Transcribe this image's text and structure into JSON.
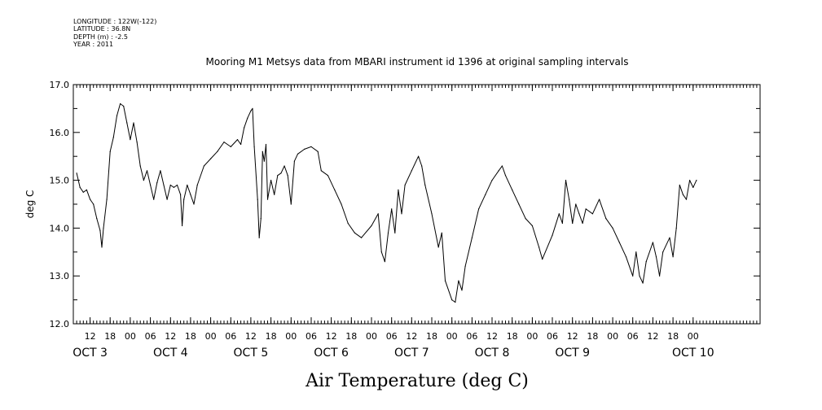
{
  "header": {
    "longitude": "LONGITUDE : 122W(-122)",
    "latitude": "LATITUDE : 36.8N",
    "depth": "DEPTH (m) : -2.5",
    "year": "YEAR : 2011"
  },
  "chart_data": {
    "type": "line",
    "title": "Mooring M1 Metsys data from MBARI instrument id 1396 at original sampling intervals",
    "xlabel": "Air Temperature (deg C)",
    "ylabel": "deg C",
    "ylim": [
      12.0,
      17.0
    ],
    "yticks": [
      "12.0",
      "13.0",
      "14.0",
      "15.0",
      "16.0",
      "17.0"
    ],
    "xlim": [
      "2011-10-02T07:00",
      "2011-10-10T20:00"
    ],
    "hour_ticks": [
      {
        "t": "2011-10-02T12:00",
        "label": "12"
      },
      {
        "t": "2011-10-02T18:00",
        "label": "18"
      },
      {
        "t": "2011-10-03T00:00",
        "label": "00"
      },
      {
        "t": "2011-10-03T06:00",
        "label": "06"
      },
      {
        "t": "2011-10-03T12:00",
        "label": "12"
      },
      {
        "t": "2011-10-03T18:00",
        "label": "18"
      },
      {
        "t": "2011-10-04T00:00",
        "label": "00"
      },
      {
        "t": "2011-10-04T06:00",
        "label": "06"
      },
      {
        "t": "2011-10-04T12:00",
        "label": "12"
      },
      {
        "t": "2011-10-04T18:00",
        "label": "18"
      },
      {
        "t": "2011-10-05T00:00",
        "label": "00"
      },
      {
        "t": "2011-10-05T06:00",
        "label": "06"
      },
      {
        "t": "2011-10-05T12:00",
        "label": "12"
      },
      {
        "t": "2011-10-05T18:00",
        "label": "18"
      },
      {
        "t": "2011-10-06T00:00",
        "label": "00"
      },
      {
        "t": "2011-10-06T06:00",
        "label": "06"
      },
      {
        "t": "2011-10-06T12:00",
        "label": "12"
      },
      {
        "t": "2011-10-06T18:00",
        "label": "18"
      },
      {
        "t": "2011-10-07T00:00",
        "label": "00"
      },
      {
        "t": "2011-10-07T06:00",
        "label": "06"
      },
      {
        "t": "2011-10-07T12:00",
        "label": "12"
      },
      {
        "t": "2011-10-07T18:00",
        "label": "18"
      },
      {
        "t": "2011-10-08T00:00",
        "label": "00"
      },
      {
        "t": "2011-10-08T06:00",
        "label": "06"
      },
      {
        "t": "2011-10-08T12:00",
        "label": "12"
      },
      {
        "t": "2011-10-08T18:00",
        "label": "18"
      },
      {
        "t": "2011-10-09T00:00",
        "label": "00"
      },
      {
        "t": "2011-10-09T06:00",
        "label": "06"
      },
      {
        "t": "2011-10-09T12:00",
        "label": "12"
      },
      {
        "t": "2011-10-09T18:00",
        "label": "18"
      },
      {
        "t": "2011-10-10T00:00",
        "label": "00"
      }
    ],
    "day_labels": [
      {
        "t": "2011-10-02T12:00",
        "label": "OCT  3"
      },
      {
        "t": "2011-10-03T12:00",
        "label": "OCT  4"
      },
      {
        "t": "2011-10-04T12:00",
        "label": "OCT  5"
      },
      {
        "t": "2011-10-05T12:00",
        "label": "OCT  6"
      },
      {
        "t": "2011-10-06T12:00",
        "label": "OCT  7"
      },
      {
        "t": "2011-10-07T12:00",
        "label": "OCT  8"
      },
      {
        "t": "2011-10-08T12:00",
        "label": "OCT  9"
      },
      {
        "t": "2011-10-10T00:00",
        "label": "OCT 10"
      }
    ],
    "series": [
      {
        "values": [
          [
            "2011-10-02T08:00",
            15.15
          ],
          [
            "2011-10-02T09:00",
            14.85
          ],
          [
            "2011-10-02T10:00",
            14.75
          ],
          [
            "2011-10-02T11:00",
            14.8
          ],
          [
            "2011-10-02T12:00",
            14.6
          ],
          [
            "2011-10-02T13:00",
            14.5
          ],
          [
            "2011-10-02T14:00",
            14.2
          ],
          [
            "2011-10-02T15:00",
            13.95
          ],
          [
            "2011-10-02T15:30",
            13.6
          ],
          [
            "2011-10-02T16:00",
            14.0
          ],
          [
            "2011-10-02T17:00",
            14.6
          ],
          [
            "2011-10-02T18:00",
            15.6
          ],
          [
            "2011-10-02T19:00",
            15.9
          ],
          [
            "2011-10-02T20:00",
            16.35
          ],
          [
            "2011-10-02T21:00",
            16.6
          ],
          [
            "2011-10-02T22:00",
            16.55
          ],
          [
            "2011-10-02T23:00",
            16.2
          ],
          [
            "2011-10-03T00:00",
            15.85
          ],
          [
            "2011-10-03T01:00",
            16.2
          ],
          [
            "2011-10-03T02:00",
            15.8
          ],
          [
            "2011-10-03T03:00",
            15.3
          ],
          [
            "2011-10-03T04:00",
            15.0
          ],
          [
            "2011-10-03T05:00",
            15.2
          ],
          [
            "2011-10-03T06:00",
            14.9
          ],
          [
            "2011-10-03T07:00",
            14.6
          ],
          [
            "2011-10-03T08:00",
            14.95
          ],
          [
            "2011-10-03T09:00",
            15.2
          ],
          [
            "2011-10-03T10:00",
            14.9
          ],
          [
            "2011-10-03T11:00",
            14.6
          ],
          [
            "2011-10-03T12:00",
            14.9
          ],
          [
            "2011-10-03T13:00",
            14.85
          ],
          [
            "2011-10-03T14:00",
            14.9
          ],
          [
            "2011-10-03T15:00",
            14.7
          ],
          [
            "2011-10-03T15:30",
            14.05
          ],
          [
            "2011-10-03T16:00",
            14.6
          ],
          [
            "2011-10-03T17:00",
            14.9
          ],
          [
            "2011-10-03T18:00",
            14.7
          ],
          [
            "2011-10-03T19:00",
            14.5
          ],
          [
            "2011-10-03T20:00",
            14.9
          ],
          [
            "2011-10-03T22:00",
            15.3
          ],
          [
            "2011-10-04T00:00",
            15.45
          ],
          [
            "2011-10-04T02:00",
            15.6
          ],
          [
            "2011-10-04T04:00",
            15.8
          ],
          [
            "2011-10-04T06:00",
            15.7
          ],
          [
            "2011-10-04T08:00",
            15.85
          ],
          [
            "2011-10-04T09:00",
            15.75
          ],
          [
            "2011-10-04T10:00",
            16.1
          ],
          [
            "2011-10-04T11:00",
            16.3
          ],
          [
            "2011-10-04T12:00",
            16.45
          ],
          [
            "2011-10-04T12:30",
            16.5
          ],
          [
            "2011-10-04T13:00",
            15.7
          ],
          [
            "2011-10-04T14:00",
            14.6
          ],
          [
            "2011-10-04T14:30",
            13.8
          ],
          [
            "2011-10-04T15:00",
            14.2
          ],
          [
            "2011-10-04T15:30",
            15.6
          ],
          [
            "2011-10-04T16:00",
            15.4
          ],
          [
            "2011-10-04T16:30",
            15.75
          ],
          [
            "2011-10-04T17:00",
            14.6
          ],
          [
            "2011-10-04T18:00",
            15.0
          ],
          [
            "2011-10-04T19:00",
            14.7
          ],
          [
            "2011-10-04T20:00",
            15.1
          ],
          [
            "2011-10-04T21:00",
            15.15
          ],
          [
            "2011-10-04T22:00",
            15.3
          ],
          [
            "2011-10-04T23:00",
            15.1
          ],
          [
            "2011-10-05T00:00",
            14.5
          ],
          [
            "2011-10-05T01:00",
            15.4
          ],
          [
            "2011-10-05T02:00",
            15.55
          ],
          [
            "2011-10-05T04:00",
            15.65
          ],
          [
            "2011-10-05T06:00",
            15.7
          ],
          [
            "2011-10-05T08:00",
            15.6
          ],
          [
            "2011-10-05T09:00",
            15.2
          ],
          [
            "2011-10-05T11:00",
            15.1
          ],
          [
            "2011-10-05T13:00",
            14.8
          ],
          [
            "2011-10-05T15:00",
            14.5
          ],
          [
            "2011-10-05T17:00",
            14.1
          ],
          [
            "2011-10-05T19:00",
            13.9
          ],
          [
            "2011-10-05T21:00",
            13.8
          ],
          [
            "2011-10-06T00:00",
            14.05
          ],
          [
            "2011-10-06T02:00",
            14.3
          ],
          [
            "2011-10-06T03:00",
            13.5
          ],
          [
            "2011-10-06T04:00",
            13.3
          ],
          [
            "2011-10-06T05:00",
            13.9
          ],
          [
            "2011-10-06T06:00",
            14.4
          ],
          [
            "2011-10-06T07:00",
            13.9
          ],
          [
            "2011-10-06T08:00",
            14.8
          ],
          [
            "2011-10-06T09:00",
            14.3
          ],
          [
            "2011-10-06T10:00",
            14.9
          ],
          [
            "2011-10-06T12:00",
            15.2
          ],
          [
            "2011-10-06T14:00",
            15.5
          ],
          [
            "2011-10-06T15:00",
            15.3
          ],
          [
            "2011-10-06T16:00",
            14.9
          ],
          [
            "2011-10-06T18:00",
            14.3
          ],
          [
            "2011-10-06T20:00",
            13.6
          ],
          [
            "2011-10-06T21:00",
            13.9
          ],
          [
            "2011-10-06T22:00",
            12.9
          ],
          [
            "2011-10-07T00:00",
            12.5
          ],
          [
            "2011-10-07T01:00",
            12.45
          ],
          [
            "2011-10-07T02:00",
            12.9
          ],
          [
            "2011-10-07T03:00",
            12.7
          ],
          [
            "2011-10-07T04:00",
            13.2
          ],
          [
            "2011-10-07T06:00",
            13.8
          ],
          [
            "2011-10-07T08:00",
            14.4
          ],
          [
            "2011-10-07T10:00",
            14.7
          ],
          [
            "2011-10-07T12:00",
            15.0
          ],
          [
            "2011-10-07T14:00",
            15.2
          ],
          [
            "2011-10-07T15:00",
            15.3
          ],
          [
            "2011-10-07T16:00",
            15.1
          ],
          [
            "2011-10-07T18:00",
            14.8
          ],
          [
            "2011-10-07T20:00",
            14.5
          ],
          [
            "2011-10-07T22:00",
            14.2
          ],
          [
            "2011-10-08T00:00",
            14.05
          ],
          [
            "2011-10-08T02:00",
            13.6
          ],
          [
            "2011-10-08T03:00",
            13.35
          ],
          [
            "2011-10-08T06:00",
            13.85
          ],
          [
            "2011-10-08T08:00",
            14.3
          ],
          [
            "2011-10-08T09:00",
            14.1
          ],
          [
            "2011-10-08T10:00",
            15.0
          ],
          [
            "2011-10-08T11:00",
            14.6
          ],
          [
            "2011-10-08T12:00",
            14.1
          ],
          [
            "2011-10-08T13:00",
            14.5
          ],
          [
            "2011-10-08T14:00",
            14.3
          ],
          [
            "2011-10-08T15:00",
            14.1
          ],
          [
            "2011-10-08T16:00",
            14.4
          ],
          [
            "2011-10-08T18:00",
            14.3
          ],
          [
            "2011-10-08T20:00",
            14.6
          ],
          [
            "2011-10-08T22:00",
            14.2
          ],
          [
            "2011-10-09T00:00",
            14.0
          ],
          [
            "2011-10-09T02:00",
            13.7
          ],
          [
            "2011-10-09T04:00",
            13.4
          ],
          [
            "2011-10-09T06:00",
            13.0
          ],
          [
            "2011-10-09T07:00",
            13.5
          ],
          [
            "2011-10-09T08:00",
            13.0
          ],
          [
            "2011-10-09T09:00",
            12.85
          ],
          [
            "2011-10-09T10:00",
            13.3
          ],
          [
            "2011-10-09T12:00",
            13.7
          ],
          [
            "2011-10-09T13:00",
            13.4
          ],
          [
            "2011-10-09T14:00",
            13.0
          ],
          [
            "2011-10-09T15:00",
            13.5
          ],
          [
            "2011-10-09T17:00",
            13.8
          ],
          [
            "2011-10-09T18:00",
            13.4
          ],
          [
            "2011-10-09T19:00",
            14.0
          ],
          [
            "2011-10-09T20:00",
            14.9
          ],
          [
            "2011-10-09T21:00",
            14.7
          ],
          [
            "2011-10-09T22:00",
            14.6
          ],
          [
            "2011-10-09T23:00",
            15.0
          ],
          [
            "2011-10-10T00:00",
            14.85
          ],
          [
            "2011-10-10T01:00",
            15.0
          ]
        ]
      }
    ],
    "colors": {
      "line": "#000000",
      "background": "#ffffff",
      "axes": "#000000"
    }
  }
}
